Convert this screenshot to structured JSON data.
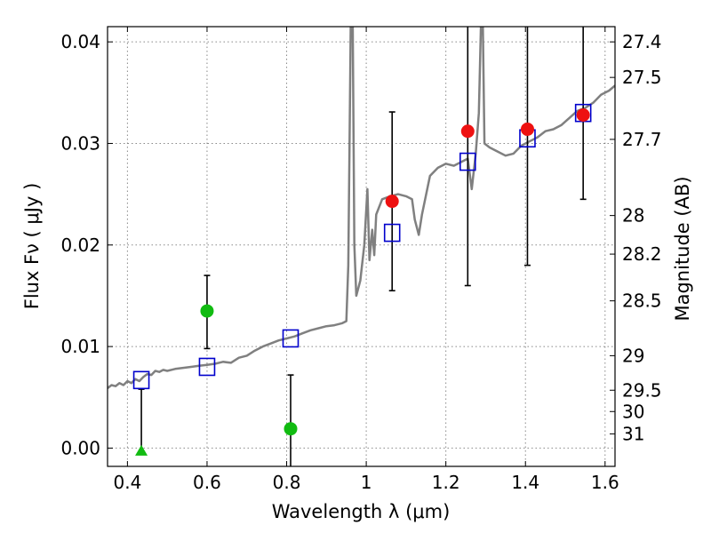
{
  "chart_data": {
    "type": "scatter",
    "xlabel": "Wavelength  λ (μm)",
    "ylabel": "Flux  Fν  ( μJy )",
    "y2label": "Magnitude (AB)",
    "xlim": [
      0.35,
      1.625
    ],
    "ylim": [
      -0.0018,
      0.0415
    ],
    "grid": true,
    "x_ticks": [
      {
        "value": 0.4,
        "label": "0.4"
      },
      {
        "value": 0.6,
        "label": "0.6"
      },
      {
        "value": 0.8,
        "label": "0.8"
      },
      {
        "value": 1.0,
        "label": "1"
      },
      {
        "value": 1.2,
        "label": "1.2"
      },
      {
        "value": 1.4,
        "label": "1.4"
      },
      {
        "value": 1.6,
        "label": "1.6"
      }
    ],
    "y_ticks": [
      {
        "value": 0.0,
        "label": "0.00"
      },
      {
        "value": 0.01,
        "label": "0.01"
      },
      {
        "value": 0.02,
        "label": "0.02"
      },
      {
        "value": 0.03,
        "label": "0.03"
      },
      {
        "value": 0.04,
        "label": "0.04"
      }
    ],
    "y2_ticks": [
      {
        "flux": 0.04,
        "label": "27.4"
      },
      {
        "flux": 0.0365,
        "label": "27.5"
      },
      {
        "flux": 0.0304,
        "label": "27.7"
      },
      {
        "flux": 0.0229,
        "label": "28"
      },
      {
        "flux": 0.0191,
        "label": "28.2"
      },
      {
        "flux": 0.0145,
        "label": "28.5"
      },
      {
        "flux": 0.0091,
        "label": "29"
      },
      {
        "flux": 0.0057,
        "label": "29.5"
      },
      {
        "flux": 0.0036,
        "label": "30"
      },
      {
        "flux": 0.0014,
        "label": "31"
      }
    ],
    "colors": {
      "model": "#808080",
      "model_photometry": "#0000cc",
      "detection": "#ee1111",
      "low_sn": "#11bb11",
      "errorbar": "#000000",
      "grid": "#888888"
    },
    "series": [
      {
        "name": "model_spectrum",
        "kind": "line",
        "points": [
          [
            0.35,
            0.0059
          ],
          [
            0.36,
            0.0062
          ],
          [
            0.37,
            0.0061
          ],
          [
            0.38,
            0.0064
          ],
          [
            0.39,
            0.0062
          ],
          [
            0.4,
            0.0066
          ],
          [
            0.41,
            0.0064
          ],
          [
            0.42,
            0.0068
          ],
          [
            0.43,
            0.0066
          ],
          [
            0.44,
            0.007
          ],
          [
            0.45,
            0.0073
          ],
          [
            0.46,
            0.0072
          ],
          [
            0.47,
            0.0076
          ],
          [
            0.48,
            0.0075
          ],
          [
            0.49,
            0.0077
          ],
          [
            0.5,
            0.0076
          ],
          [
            0.52,
            0.0078
          ],
          [
            0.54,
            0.0079
          ],
          [
            0.56,
            0.008
          ],
          [
            0.58,
            0.0081
          ],
          [
            0.6,
            0.0082
          ],
          [
            0.62,
            0.0083
          ],
          [
            0.64,
            0.0085
          ],
          [
            0.66,
            0.0084
          ],
          [
            0.68,
            0.0089
          ],
          [
            0.7,
            0.0091
          ],
          [
            0.72,
            0.0096
          ],
          [
            0.74,
            0.01
          ],
          [
            0.76,
            0.0103
          ],
          [
            0.78,
            0.0106
          ],
          [
            0.8,
            0.0108
          ],
          [
            0.82,
            0.011
          ],
          [
            0.84,
            0.0113
          ],
          [
            0.86,
            0.0116
          ],
          [
            0.88,
            0.0118
          ],
          [
            0.9,
            0.012
          ],
          [
            0.92,
            0.0121
          ],
          [
            0.94,
            0.0123
          ],
          [
            0.95,
            0.0125
          ],
          [
            0.955,
            0.018
          ],
          [
            0.958,
            0.03
          ],
          [
            0.961,
            0.0415
          ],
          [
            0.966,
            0.0415
          ],
          [
            0.97,
            0.02
          ],
          [
            0.975,
            0.015
          ],
          [
            0.985,
            0.0165
          ],
          [
            0.995,
            0.02
          ],
          [
            1.003,
            0.0255
          ],
          [
            1.008,
            0.0185
          ],
          [
            1.015,
            0.0215
          ],
          [
            1.02,
            0.019
          ],
          [
            1.025,
            0.023
          ],
          [
            1.04,
            0.0245
          ],
          [
            1.06,
            0.0248
          ],
          [
            1.08,
            0.025
          ],
          [
            1.1,
            0.0248
          ],
          [
            1.115,
            0.0245
          ],
          [
            1.122,
            0.0225
          ],
          [
            1.132,
            0.021
          ],
          [
            1.14,
            0.023
          ],
          [
            1.16,
            0.0268
          ],
          [
            1.18,
            0.0276
          ],
          [
            1.2,
            0.028
          ],
          [
            1.22,
            0.0278
          ],
          [
            1.24,
            0.0282
          ],
          [
            1.255,
            0.0285
          ],
          [
            1.265,
            0.0255
          ],
          [
            1.275,
            0.029
          ],
          [
            1.283,
            0.033
          ],
          [
            1.288,
            0.0415
          ],
          [
            1.293,
            0.0415
          ],
          [
            1.297,
            0.03
          ],
          [
            1.31,
            0.0296
          ],
          [
            1.33,
            0.0292
          ],
          [
            1.35,
            0.0288
          ],
          [
            1.37,
            0.029
          ],
          [
            1.39,
            0.0298
          ],
          [
            1.41,
            0.0302
          ],
          [
            1.43,
            0.0306
          ],
          [
            1.45,
            0.0312
          ],
          [
            1.47,
            0.0314
          ],
          [
            1.49,
            0.0318
          ],
          [
            1.51,
            0.0325
          ],
          [
            1.53,
            0.0332
          ],
          [
            1.55,
            0.0335
          ],
          [
            1.57,
            0.034
          ],
          [
            1.59,
            0.0348
          ],
          [
            1.61,
            0.0352
          ],
          [
            1.625,
            0.0357
          ]
        ]
      },
      {
        "name": "model_photometry",
        "kind": "square",
        "points": [
          {
            "x": 0.435,
            "y": 0.0067
          },
          {
            "x": 0.6,
            "y": 0.008
          },
          {
            "x": 0.81,
            "y": 0.0108
          },
          {
            "x": 1.065,
            "y": 0.0212
          },
          {
            "x": 1.255,
            "y": 0.0282
          },
          {
            "x": 1.405,
            "y": 0.0305
          },
          {
            "x": 1.545,
            "y": 0.033
          }
        ]
      },
      {
        "name": "observed_detections",
        "kind": "circle",
        "color_key": "detection",
        "points": [
          {
            "x": 1.065,
            "y": 0.0243,
            "ylo": 0.0155,
            "yhi": 0.0331
          },
          {
            "x": 1.255,
            "y": 0.0312,
            "ylo": 0.016,
            "yhi": 0.0415
          },
          {
            "x": 1.405,
            "y": 0.0314,
            "ylo": 0.018,
            "yhi": 0.0415
          },
          {
            "x": 1.545,
            "y": 0.0328,
            "ylo": 0.0245,
            "yhi": 0.0415
          }
        ]
      },
      {
        "name": "observed_low_sn",
        "kind": "circle",
        "color_key": "low_sn",
        "points": [
          {
            "x": 0.6,
            "y": 0.0135,
            "ylo": 0.0098,
            "yhi": 0.017
          },
          {
            "x": 0.81,
            "y": 0.0019,
            "ylo": -0.0018,
            "yhi": 0.0072
          }
        ]
      },
      {
        "name": "upper_limit",
        "kind": "triangle",
        "color_key": "low_sn",
        "points": [
          {
            "x": 0.435,
            "y": -0.0003,
            "ylo": -0.0003,
            "yhi": 0.0058
          }
        ]
      }
    ]
  }
}
